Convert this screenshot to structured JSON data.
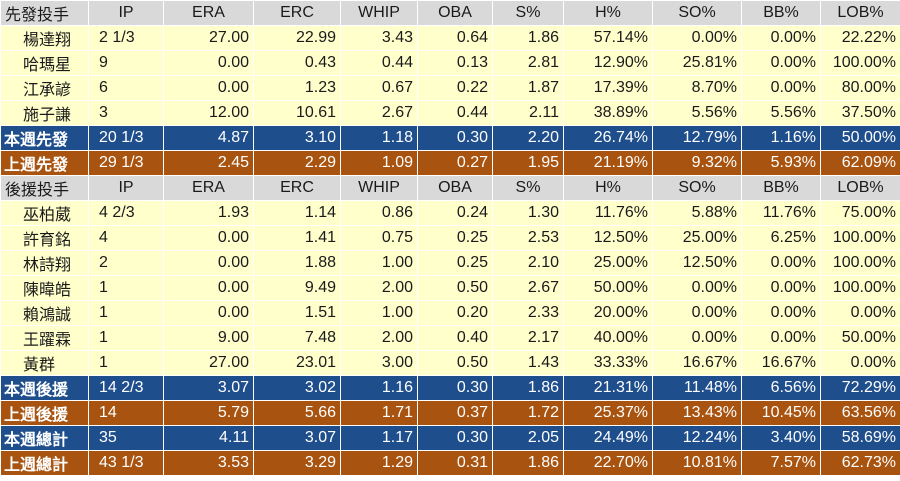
{
  "colors": {
    "header_bg": "#d9d9d9",
    "player_row_bg": "#ffffcc",
    "this_week_bg": "#1f4e8c",
    "last_week_bg": "#a8530f"
  },
  "rows": [
    {
      "type": "header",
      "cells": [
        "先發投手",
        "IP",
        "ERA",
        "ERC",
        "WHIP",
        "OBA",
        "S%",
        "H%",
        "SO%",
        "BB%",
        "LOB%"
      ]
    },
    {
      "type": "player",
      "cells": [
        "楊達翔",
        "2 1/3",
        "27.00",
        "22.99",
        "3.43",
        "0.64",
        "1.86",
        "57.14%",
        "0.00%",
        "0.00%",
        "22.22%"
      ]
    },
    {
      "type": "player",
      "cells": [
        "哈瑪星",
        "9",
        "0.00",
        "0.43",
        "0.44",
        "0.13",
        "2.81",
        "12.90%",
        "25.81%",
        "0.00%",
        "100.00%"
      ]
    },
    {
      "type": "player",
      "cells": [
        "江承諺",
        "6",
        "0.00",
        "1.23",
        "0.67",
        "0.22",
        "1.87",
        "17.39%",
        "8.70%",
        "0.00%",
        "80.00%"
      ]
    },
    {
      "type": "player",
      "cells": [
        "施子謙",
        "3",
        "12.00",
        "10.61",
        "2.67",
        "0.44",
        "2.11",
        "38.89%",
        "5.56%",
        "5.56%",
        "37.50%"
      ]
    },
    {
      "type": "sum-blue",
      "cells": [
        "本週先發",
        "20 1/3",
        "4.87",
        "3.10",
        "1.18",
        "0.30",
        "2.20",
        "26.74%",
        "12.79%",
        "1.16%",
        "50.00%"
      ]
    },
    {
      "type": "sum-brown",
      "cells": [
        "上週先發",
        "29 1/3",
        "2.45",
        "2.29",
        "1.09",
        "0.27",
        "1.95",
        "21.19%",
        "9.32%",
        "5.93%",
        "62.09%"
      ]
    },
    {
      "type": "header",
      "cells": [
        "後援投手",
        "IP",
        "ERA",
        "ERC",
        "WHIP",
        "OBA",
        "S%",
        "H%",
        "SO%",
        "BB%",
        "LOB%"
      ]
    },
    {
      "type": "player",
      "cells": [
        "巫柏葳",
        "4 2/3",
        "1.93",
        "1.14",
        "0.86",
        "0.24",
        "1.30",
        "11.76%",
        "5.88%",
        "11.76%",
        "75.00%"
      ]
    },
    {
      "type": "player",
      "cells": [
        "許育銘",
        "4",
        "0.00",
        "1.41",
        "0.75",
        "0.25",
        "2.53",
        "12.50%",
        "25.00%",
        "6.25%",
        "100.00%"
      ]
    },
    {
      "type": "player",
      "cells": [
        "林詩翔",
        "2",
        "0.00",
        "1.88",
        "1.00",
        "0.25",
        "2.10",
        "25.00%",
        "12.50%",
        "0.00%",
        "100.00%"
      ]
    },
    {
      "type": "player",
      "cells": [
        "陳暐皓",
        "1",
        "0.00",
        "9.49",
        "2.00",
        "0.50",
        "2.67",
        "50.00%",
        "0.00%",
        "0.00%",
        "100.00%"
      ]
    },
    {
      "type": "player",
      "cells": [
        "賴鴻誠",
        "1",
        "0.00",
        "1.51",
        "1.00",
        "0.20",
        "2.33",
        "20.00%",
        "0.00%",
        "0.00%",
        "0.00%"
      ]
    },
    {
      "type": "player",
      "cells": [
        "王躍霖",
        "1",
        "9.00",
        "7.48",
        "2.00",
        "0.40",
        "2.17",
        "40.00%",
        "0.00%",
        "0.00%",
        "50.00%"
      ]
    },
    {
      "type": "player",
      "cells": [
        "黃群",
        "1",
        "27.00",
        "23.01",
        "3.00",
        "0.50",
        "1.43",
        "33.33%",
        "16.67%",
        "16.67%",
        "0.00%"
      ]
    },
    {
      "type": "sum-blue",
      "cells": [
        "本週後援",
        "14 2/3",
        "3.07",
        "3.02",
        "1.16",
        "0.30",
        "1.86",
        "21.31%",
        "11.48%",
        "6.56%",
        "72.29%"
      ]
    },
    {
      "type": "sum-brown",
      "cells": [
        "上週後援",
        "14",
        "5.79",
        "5.66",
        "1.71",
        "0.37",
        "1.72",
        "25.37%",
        "13.43%",
        "10.45%",
        "63.56%"
      ]
    },
    {
      "type": "sum-blue",
      "cells": [
        "本週總計",
        "35",
        "4.11",
        "3.07",
        "1.17",
        "0.30",
        "2.05",
        "24.49%",
        "12.24%",
        "3.40%",
        "58.69%"
      ]
    },
    {
      "type": "sum-brown",
      "cells": [
        "上週總計",
        "43 1/3",
        "3.53",
        "3.29",
        "1.29",
        "0.31",
        "1.86",
        "22.70%",
        "10.81%",
        "7.57%",
        "62.73%"
      ]
    }
  ]
}
